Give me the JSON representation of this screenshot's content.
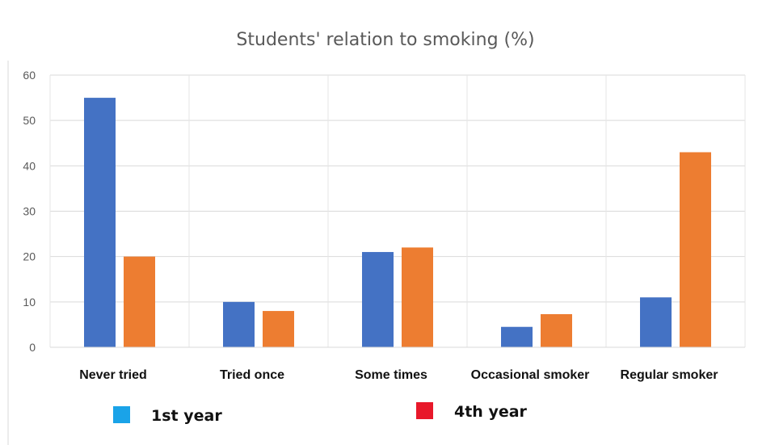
{
  "chart_data": {
    "type": "bar",
    "title": "Students' relation to smoking (%)",
    "xlabel": "",
    "ylabel": "",
    "categories": [
      "Never tried",
      "Tried once",
      "Some times",
      "Occasional smoker",
      "Regular smoker"
    ],
    "series": [
      {
        "name": "1st year",
        "values": [
          55,
          10,
          21,
          4.5,
          11
        ],
        "color": "#4472c4"
      },
      {
        "name": "4th year",
        "values": [
          20,
          8,
          22,
          7.3,
          43
        ],
        "color": "#ed7d31"
      }
    ],
    "ylim": [
      0,
      60
    ],
    "yticks": [
      0,
      10,
      20,
      30,
      40,
      50,
      60
    ],
    "grid": true,
    "legend": {
      "placement": "bottom",
      "entries": [
        {
          "label": "1st year",
          "swatch_color": "#1aa3e8"
        },
        {
          "label": "4th year",
          "swatch_color": "#e8182a"
        }
      ]
    }
  }
}
